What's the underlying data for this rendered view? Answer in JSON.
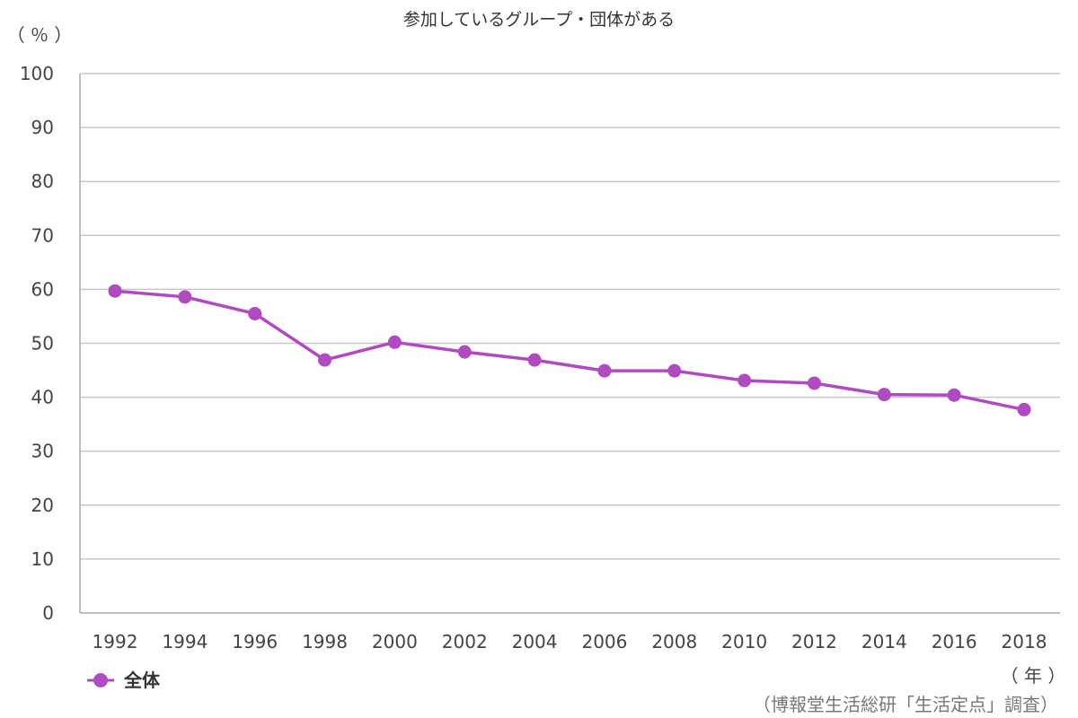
{
  "chart_data": {
    "type": "line",
    "title": "参加しているグループ・団体がある",
    "y_unit": "（ ％ ）",
    "x_unit": "（ 年 ）",
    "source": "（博報堂生活総研「生活定点」調査）",
    "categories": [
      "1992",
      "1994",
      "1996",
      "1998",
      "2000",
      "2002",
      "2004",
      "2006",
      "2008",
      "2010",
      "2012",
      "2014",
      "2016",
      "2018"
    ],
    "series": [
      {
        "name": "全体",
        "color": "#b04ac0",
        "values": [
          59.7,
          58.6,
          55.5,
          46.9,
          50.2,
          48.4,
          46.9,
          44.9,
          44.9,
          43.1,
          42.6,
          40.5,
          40.4,
          37.7
        ]
      }
    ],
    "ylim": [
      0,
      100
    ],
    "yticks": [
      0,
      10,
      20,
      30,
      40,
      50,
      60,
      70,
      80,
      90,
      100
    ],
    "grid": true,
    "legend_position": "bottom-left"
  }
}
